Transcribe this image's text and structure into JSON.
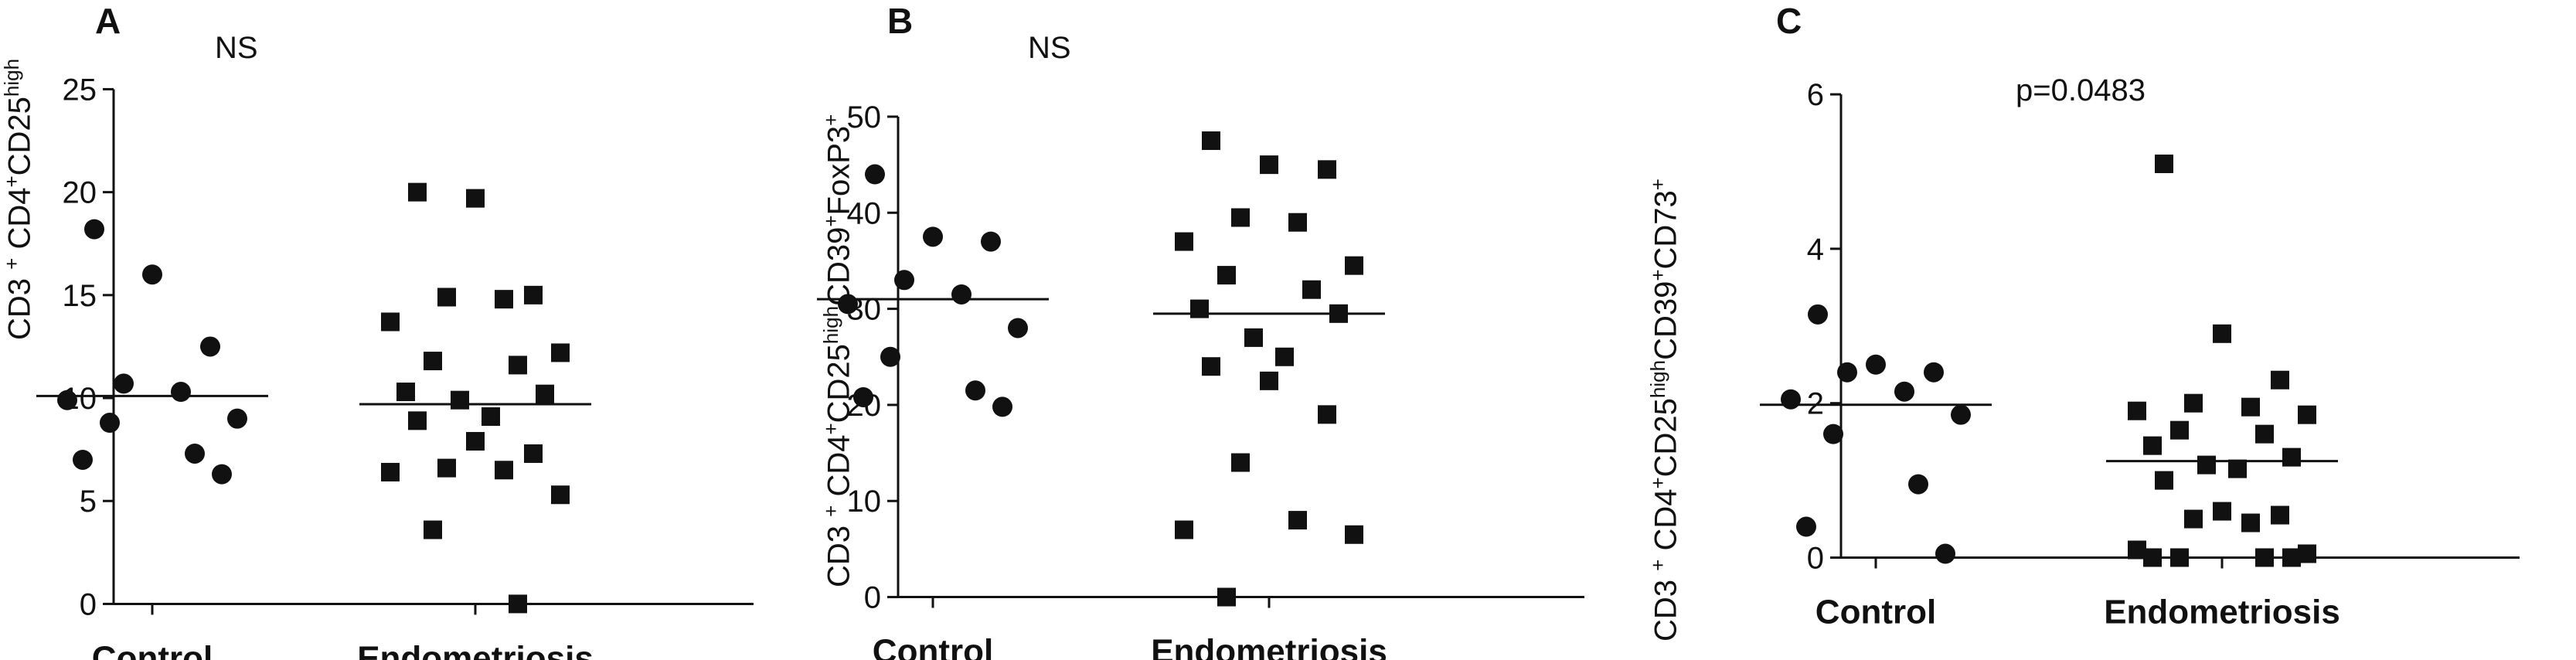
{
  "chart_data": [
    {
      "type": "scatter",
      "panel": "A",
      "annotation": "NS",
      "ylabel": {
        "base1": "CD3 ",
        "sup1": "+",
        "base2": " CD4",
        "sup2": "+",
        "base3": "CD25",
        "sup3": "high",
        "base4": "",
        "sup4": "",
        "base5": "",
        "sup5": ""
      },
      "ylim": [
        0,
        25
      ],
      "yticks": [
        0,
        5,
        10,
        15,
        20,
        25
      ],
      "categories": [
        "Control",
        "Endometriosis"
      ],
      "series": [
        {
          "group": "Control",
          "marker": "circle",
          "median": 10.1,
          "values": [
            18.2,
            16.0,
            12.5,
            10.7,
            10.3,
            9.9,
            9.0,
            8.8,
            7.3,
            7.0,
            6.3
          ]
        },
        {
          "group": "Endometriosis",
          "marker": "square",
          "median": 9.7,
          "values": [
            20.0,
            19.7,
            15.0,
            14.9,
            14.8,
            13.7,
            12.2,
            11.8,
            11.6,
            10.3,
            10.2,
            9.9,
            9.1,
            8.9,
            7.9,
            7.3,
            6.6,
            6.5,
            6.4,
            5.3,
            3.6,
            0.0
          ]
        }
      ]
    },
    {
      "type": "scatter",
      "panel": "B",
      "annotation": "NS",
      "ylabel": {
        "base1": "CD3 ",
        "sup1": "+",
        "base2": " CD4",
        "sup2": "+",
        "base3": "CD25",
        "sup3": "high",
        "base4": "CD39",
        "sup4": "+",
        "base5": "FoxP3",
        "sup5": "+"
      },
      "ylim": [
        0,
        50
      ],
      "yticks": [
        0,
        10,
        20,
        30,
        40,
        50
      ],
      "categories": [
        "Control",
        "Endometriosis"
      ],
      "series": [
        {
          "group": "Control",
          "marker": "circle",
          "median": 31,
          "values": [
            44.0,
            37.5,
            37.0,
            33.0,
            31.5,
            30.5,
            28.0,
            25.0,
            21.5,
            20.8,
            19.8
          ]
        },
        {
          "group": "Endometriosis",
          "marker": "square",
          "median": 29.5,
          "values": [
            47.5,
            45.0,
            44.5,
            39.5,
            39.0,
            37.0,
            34.5,
            33.5,
            32.0,
            30.0,
            29.5,
            27.0,
            25.0,
            24.0,
            22.5,
            19.0,
            14.0,
            8.0,
            7.0,
            6.5,
            0.0
          ]
        }
      ]
    },
    {
      "type": "scatter",
      "panel": "C",
      "annotation": "p=0.0483",
      "ylabel": {
        "base1": "CD3 ",
        "sup1": "+",
        "base2": " CD4",
        "sup2": "+",
        "base3": "CD25",
        "sup3": "high",
        "base4": "CD39",
        "sup4": "+",
        "base5": "CD73",
        "sup5": "+"
      },
      "ylim": [
        0,
        6
      ],
      "yticks": [
        0,
        2,
        4,
        6
      ],
      "categories": [
        "Control",
        "Endometriosis"
      ],
      "series": [
        {
          "group": "Control",
          "marker": "circle",
          "median": 1.98,
          "values": [
            3.15,
            2.5,
            2.4,
            2.4,
            2.15,
            2.05,
            1.85,
            1.6,
            0.95,
            0.4,
            0.05
          ]
        },
        {
          "group": "Endometriosis",
          "marker": "square",
          "median": 1.25,
          "values": [
            5.1,
            2.9,
            2.3,
            2.0,
            1.95,
            1.9,
            1.85,
            1.65,
            1.6,
            1.45,
            1.3,
            1.2,
            1.15,
            1.0,
            0.6,
            0.55,
            0.5,
            0.45,
            0.1,
            0.05,
            0.0,
            0.0,
            0.0,
            0.0
          ]
        }
      ]
    }
  ]
}
